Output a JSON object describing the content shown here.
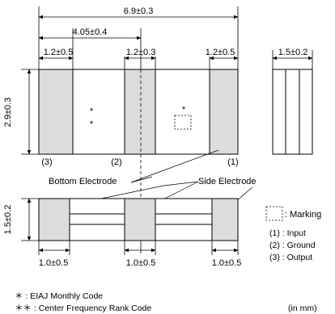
{
  "dimensions": {
    "total_length": "6.9±0.3",
    "center_pitch": "4.05±0.4",
    "top_electrode_left": "1.2±0.5",
    "top_electrode_center": "1.2±0.3",
    "top_electrode_right": "1.2±0.5",
    "side_view_width": "1.5±0.2",
    "height_top": "2.9±0.3",
    "height_bottom": "1.5±0.2",
    "bottom_electrode_left": "1.0±0.5",
    "bottom_electrode_center": "1.0±0.5",
    "bottom_electrode_right": "1.0±0.5"
  },
  "labels": {
    "pin3": "(3)",
    "pin2": "(2)",
    "pin1": "(1)",
    "bottom_electrode": "Bottom Electrode",
    "side_electrode": "Side Electrode",
    "single_star": "*",
    "double_star": "*"
  },
  "legend": {
    "marking": ": Marking",
    "input": "(1) : Input",
    "ground": "(2) : Ground",
    "output": "(3) : Output"
  },
  "notes": {
    "note1": "＊  : EIAJ Monthly Code",
    "note2": "＊＊ : Center Frequency Rank Code",
    "unit": "(in mm)"
  },
  "colors": {
    "electrode_fill": "#dcdcdc",
    "line": "#000000"
  }
}
